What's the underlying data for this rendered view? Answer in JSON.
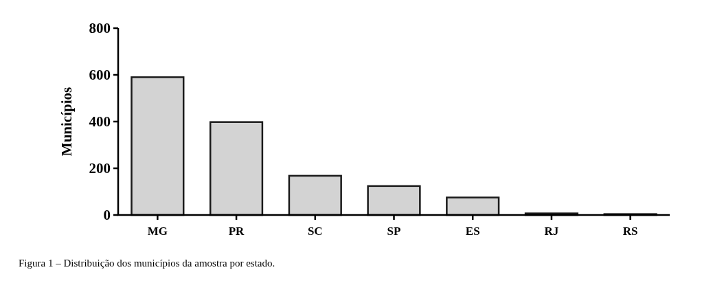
{
  "chart_data": {
    "type": "bar",
    "ylabel": "Municípios",
    "categories": [
      "MG",
      "PR",
      "SC",
      "SP",
      "ES",
      "RJ",
      "RS"
    ],
    "values": [
      590,
      398,
      168,
      124,
      75,
      7,
      4
    ],
    "color": "#d3d3d3",
    "ylim": [
      0,
      800
    ],
    "yticks": [
      0,
      200,
      400,
      600,
      800
    ],
    "annotations": [
      "Figura 1 – Distribuição dos municípios da amostra por estado."
    ]
  }
}
